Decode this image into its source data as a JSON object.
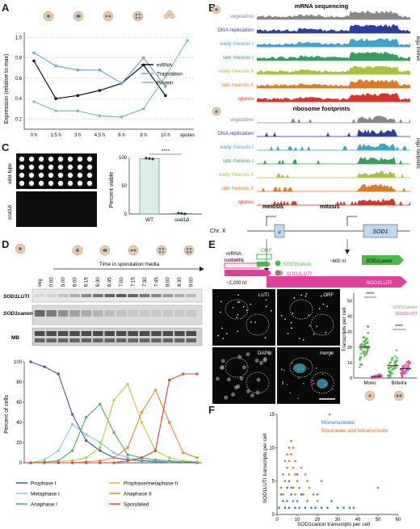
{
  "panelA": {
    "letter": "A",
    "ylabel": "Expression (relative to max)",
    "xticks": [
      "0 h",
      "1.5 h",
      "3 h",
      "4.5 h",
      "6 h",
      "8 h",
      "10 h",
      "spores"
    ],
    "yticks": [
      "0.2",
      "0.4",
      "0.6",
      "0.8",
      "1.0"
    ],
    "legend": [
      "mRNA",
      "Translation",
      "Protein"
    ],
    "colors": {
      "mRNA": "#111111",
      "Translation": "#6aa9d6",
      "Protein": "#7cc0b0"
    }
  },
  "chart_data": [
    {
      "type": "line",
      "x": [
        "0 h",
        "1.5 h",
        "3 h",
        "4.5 h",
        "6 h",
        "8 h",
        "10 h",
        "spores"
      ],
      "series": [
        {
          "name": "mRNA",
          "values": [
            0.77,
            0.4,
            0.43,
            0.48,
            0.55,
            0.73,
            0.43,
            null
          ]
        },
        {
          "name": "Translation",
          "values": [
            0.85,
            0.72,
            0.68,
            0.68,
            0.55,
            0.8,
            0.52,
            null
          ]
        },
        {
          "name": "Protein",
          "values": [
            0.37,
            0.28,
            0.28,
            0.23,
            0.22,
            0.3,
            0.62,
            0.97
          ]
        }
      ],
      "ylabel": "Expression (relative to max)",
      "ylim": [
        0.1,
        1.05
      ]
    },
    {
      "type": "bar",
      "categories": [
        "WT",
        "sod1Δ"
      ],
      "values": [
        98,
        1
      ],
      "ylabel": "Percent viable",
      "ylim": [
        0,
        100
      ],
      "annotation": "****"
    },
    {
      "type": "line",
      "x": [
        "0:00",
        "5:00",
        "6:00",
        "6:15",
        "6:30",
        "6:45",
        "7:00",
        "7:15",
        "7:30",
        "7:45",
        "8:00",
        "8:30",
        "9:00"
      ],
      "series": [
        {
          "name": "Prophase I",
          "values": [
            100,
            95,
            88,
            48,
            22,
            12,
            5,
            3,
            2,
            1,
            1,
            1,
            0
          ]
        },
        {
          "name": "Metaphase I",
          "values": [
            0,
            3,
            12,
            38,
            28,
            20,
            10,
            5,
            3,
            2,
            1,
            1,
            1
          ]
        },
        {
          "name": "Anaphase I",
          "values": [
            0,
            1,
            2,
            12,
            45,
            58,
            30,
            8,
            5,
            3,
            2,
            1,
            1
          ]
        },
        {
          "name": "Prophase/metaphase II",
          "values": [
            0,
            1,
            1,
            2,
            5,
            15,
            62,
            78,
            40,
            12,
            5,
            2,
            1
          ]
        },
        {
          "name": "Anaphase II",
          "values": [
            0,
            0,
            0,
            0,
            1,
            2,
            5,
            15,
            50,
            72,
            40,
            10,
            5
          ]
        },
        {
          "name": "Sporulated",
          "values": [
            0,
            0,
            0,
            0,
            0,
            0,
            0,
            2,
            5,
            12,
            82,
            88,
            88
          ]
        }
      ],
      "ylabel": "Percent of cells",
      "ylim": [
        0,
        100
      ]
    },
    {
      "type": "scatter",
      "xlabel": "SOD1canon transcripts per cell",
      "ylabel": "SOD1LUTI transcripts per cell",
      "xlim": [
        0,
        60
      ],
      "ylim": [
        0,
        15
      ],
      "series": [
        {
          "name": "Mononucleate",
          "points": [
            [
              1,
              1
            ],
            [
              2,
              3
            ],
            [
              3,
              2
            ],
            [
              4,
              1
            ],
            [
              5,
              2
            ],
            [
              6,
              1
            ],
            [
              7,
              3
            ],
            [
              8,
              2
            ],
            [
              9,
              1
            ],
            [
              10,
              2
            ],
            [
              11,
              1
            ],
            [
              12,
              3
            ],
            [
              14,
              1
            ],
            [
              15,
              2
            ],
            [
              17,
              1
            ],
            [
              19,
              1
            ],
            [
              20,
              3
            ],
            [
              22,
              1
            ],
            [
              25,
              1
            ],
            [
              27,
              2
            ],
            [
              30,
              1
            ],
            [
              33,
              1
            ],
            [
              36,
              1
            ],
            [
              38,
              1
            ],
            [
              3,
              6
            ],
            [
              5,
              4
            ],
            [
              6,
              5
            ],
            [
              8,
              4
            ],
            [
              10,
              6
            ]
          ]
        },
        {
          "name": "Binucleate and tetranucleate",
          "points": [
            [
              2,
              4
            ],
            [
              3,
              6
            ],
            [
              4,
              8
            ],
            [
              5,
              9
            ],
            [
              5,
              7
            ],
            [
              6,
              10
            ],
            [
              6,
              8
            ],
            [
              7,
              11
            ],
            [
              7,
              9
            ],
            [
              8,
              10
            ],
            [
              8,
              7
            ],
            [
              9,
              8
            ],
            [
              9,
              6
            ],
            [
              10,
              5
            ],
            [
              11,
              4
            ],
            [
              12,
              7
            ],
            [
              13,
              3
            ],
            [
              14,
              6
            ],
            [
              15,
              5
            ],
            [
              16,
              4
            ],
            [
              18,
              3
            ],
            [
              20,
              2
            ],
            [
              22,
              5
            ],
            [
              26,
              15
            ],
            [
              3,
              3
            ],
            [
              4,
              5
            ],
            [
              6,
              6
            ],
            [
              7,
              4
            ],
            [
              9,
              3
            ],
            [
              50,
              4
            ]
          ]
        }
      ]
    }
  ],
  "panelB": {
    "letter": "B",
    "mrna_title": "mRNA sequencing",
    "ribo_title": "ribosome footprints",
    "mrna_axis": "log2 mRNA",
    "ribo_axis": "log2 footprints",
    "tracks": [
      {
        "label": "vegetative",
        "color": "#888888"
      },
      {
        "label": "DNA replication",
        "color": "#2b3d9e"
      },
      {
        "label": "early meiosis I",
        "color": "#3aa6c8"
      },
      {
        "label": "late meiosis I",
        "color": "#36a05a"
      },
      {
        "label": "early meiosis II",
        "color": "#a7c23b"
      },
      {
        "label": "late meiosis II",
        "color": "#e07a20"
      },
      {
        "label": "spores",
        "color": "#d9342b"
      }
    ],
    "chrom": "Chr. X",
    "meiosis": "meiosis",
    "mitosis": "mitosis",
    "u_label": "u",
    "sod1_box": "SOD1",
    "isoforms_label": "mRNA\nisoforms",
    "canon_len": "~600 nt",
    "canon_label": "SOD1canon",
    "luti_len": "~2,200 nt",
    "luti_label": "SOD1LUTI",
    "canon_color": "#4cb848",
    "luti_color": "#e0409b"
  },
  "panelC": {
    "letter": "C",
    "row1": "wild-type",
    "row2": "sod1Δ",
    "ylabel": "Percent viable",
    "yticks": [
      "0",
      "50",
      "100"
    ],
    "xcats": [
      "WT",
      "sod1Δ"
    ],
    "sig": "****"
  },
  "panelD": {
    "letter": "D",
    "time_title": "Time in sporulation media",
    "lanes": [
      "veg",
      "0:00",
      "5:00",
      "6:00",
      "6:15",
      "6:30",
      "6:45",
      "7:00",
      "7:15",
      "7:30",
      "7:45",
      "8:00",
      "8:30",
      "9:00"
    ],
    "blot_labels": [
      "SOD1LUTI",
      "SOD1canon",
      "MB"
    ],
    "ylabel": "Percent of cells",
    "yticks": [
      "0",
      "20",
      "40",
      "60",
      "80",
      "100"
    ],
    "legend": [
      {
        "label": "Prophase I",
        "color": "#3855a8"
      },
      {
        "label": "Metaphase I",
        "color": "#7cc8d8"
      },
      {
        "label": "Anaphase I",
        "color": "#4caa5a"
      },
      {
        "label": "Prophase/metaphase II",
        "color": "#b8c83a"
      },
      {
        "label": "Anaphase II",
        "color": "#e68a2e"
      },
      {
        "label": "Sporulated",
        "color": "#d9442b"
      }
    ]
  },
  "panelE": {
    "letter": "E",
    "luti": "LUTI",
    "orf": "ORF",
    "canon_legend": "SOD1canon",
    "luti_legend": "SOD1LUTI",
    "img_labels": [
      "LUTI",
      "ORF",
      "DAPI",
      "merge"
    ],
    "ylabel": "Transcripts per cell",
    "yticks": [
      "0",
      "10",
      "20",
      "30",
      "40",
      "50"
    ],
    "xcats": [
      "Mono",
      "Bi/tetra"
    ],
    "sig": "****",
    "scatter_legend": [
      "SOD1canon",
      "SOD1LUTI"
    ]
  },
  "panelF": {
    "letter": "F",
    "xlabel": "SOD1canon transcripts per cell",
    "ylabel": "SOD1LUTI transcripts per cell",
    "xticks": [
      "0",
      "10",
      "20",
      "30",
      "40",
      "50",
      "60"
    ],
    "yticks": [
      "0",
      "5",
      "10",
      "15"
    ],
    "legend": [
      {
        "label": "Mononucleate",
        "color": "#3a78c8"
      },
      {
        "label": "Binucleate and tetranucleate",
        "color": "#e0702a"
      }
    ]
  }
}
